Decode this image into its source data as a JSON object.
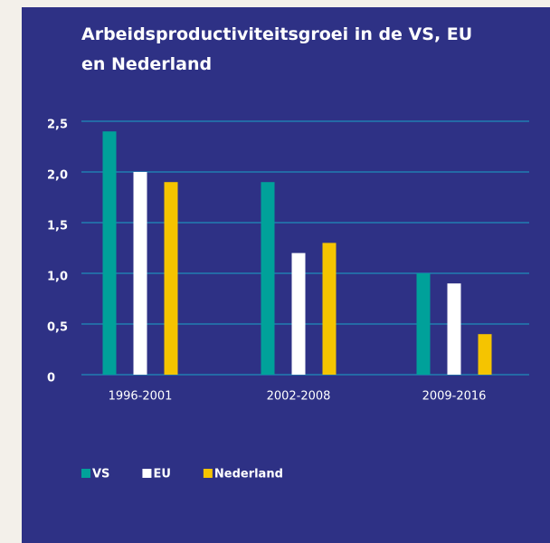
{
  "chart_data": {
    "type": "bar",
    "title": "Arbeidsproductiviteitsgroei in de VS, EU en Nederland",
    "categories": [
      "1996-2001",
      "2002-2008",
      "2009-2016"
    ],
    "series": [
      {
        "name": "VS",
        "color": "#00a19a",
        "values": [
          2.4,
          1.9,
          1.0
        ]
      },
      {
        "name": "EU",
        "color": "#ffffff",
        "values": [
          2.0,
          1.2,
          0.9
        ]
      },
      {
        "name": "Nederland",
        "color": "#f5c400",
        "values": [
          1.9,
          1.3,
          0.4
        ]
      }
    ],
    "ylim": [
      0,
      2.5
    ],
    "yticks": [
      0,
      {
        "value": 0.5,
        "label": "0,5"
      },
      {
        "value": 1.0,
        "label": "1,0"
      },
      {
        "value": 1.5,
        "label": "1,5"
      },
      {
        "value": 2.0,
        "label": "2,0"
      },
      {
        "value": 2.5,
        "label": "2,5"
      }
    ],
    "grid": true,
    "grid_color": "#1aa3c8",
    "legend": "bottom-left"
  }
}
